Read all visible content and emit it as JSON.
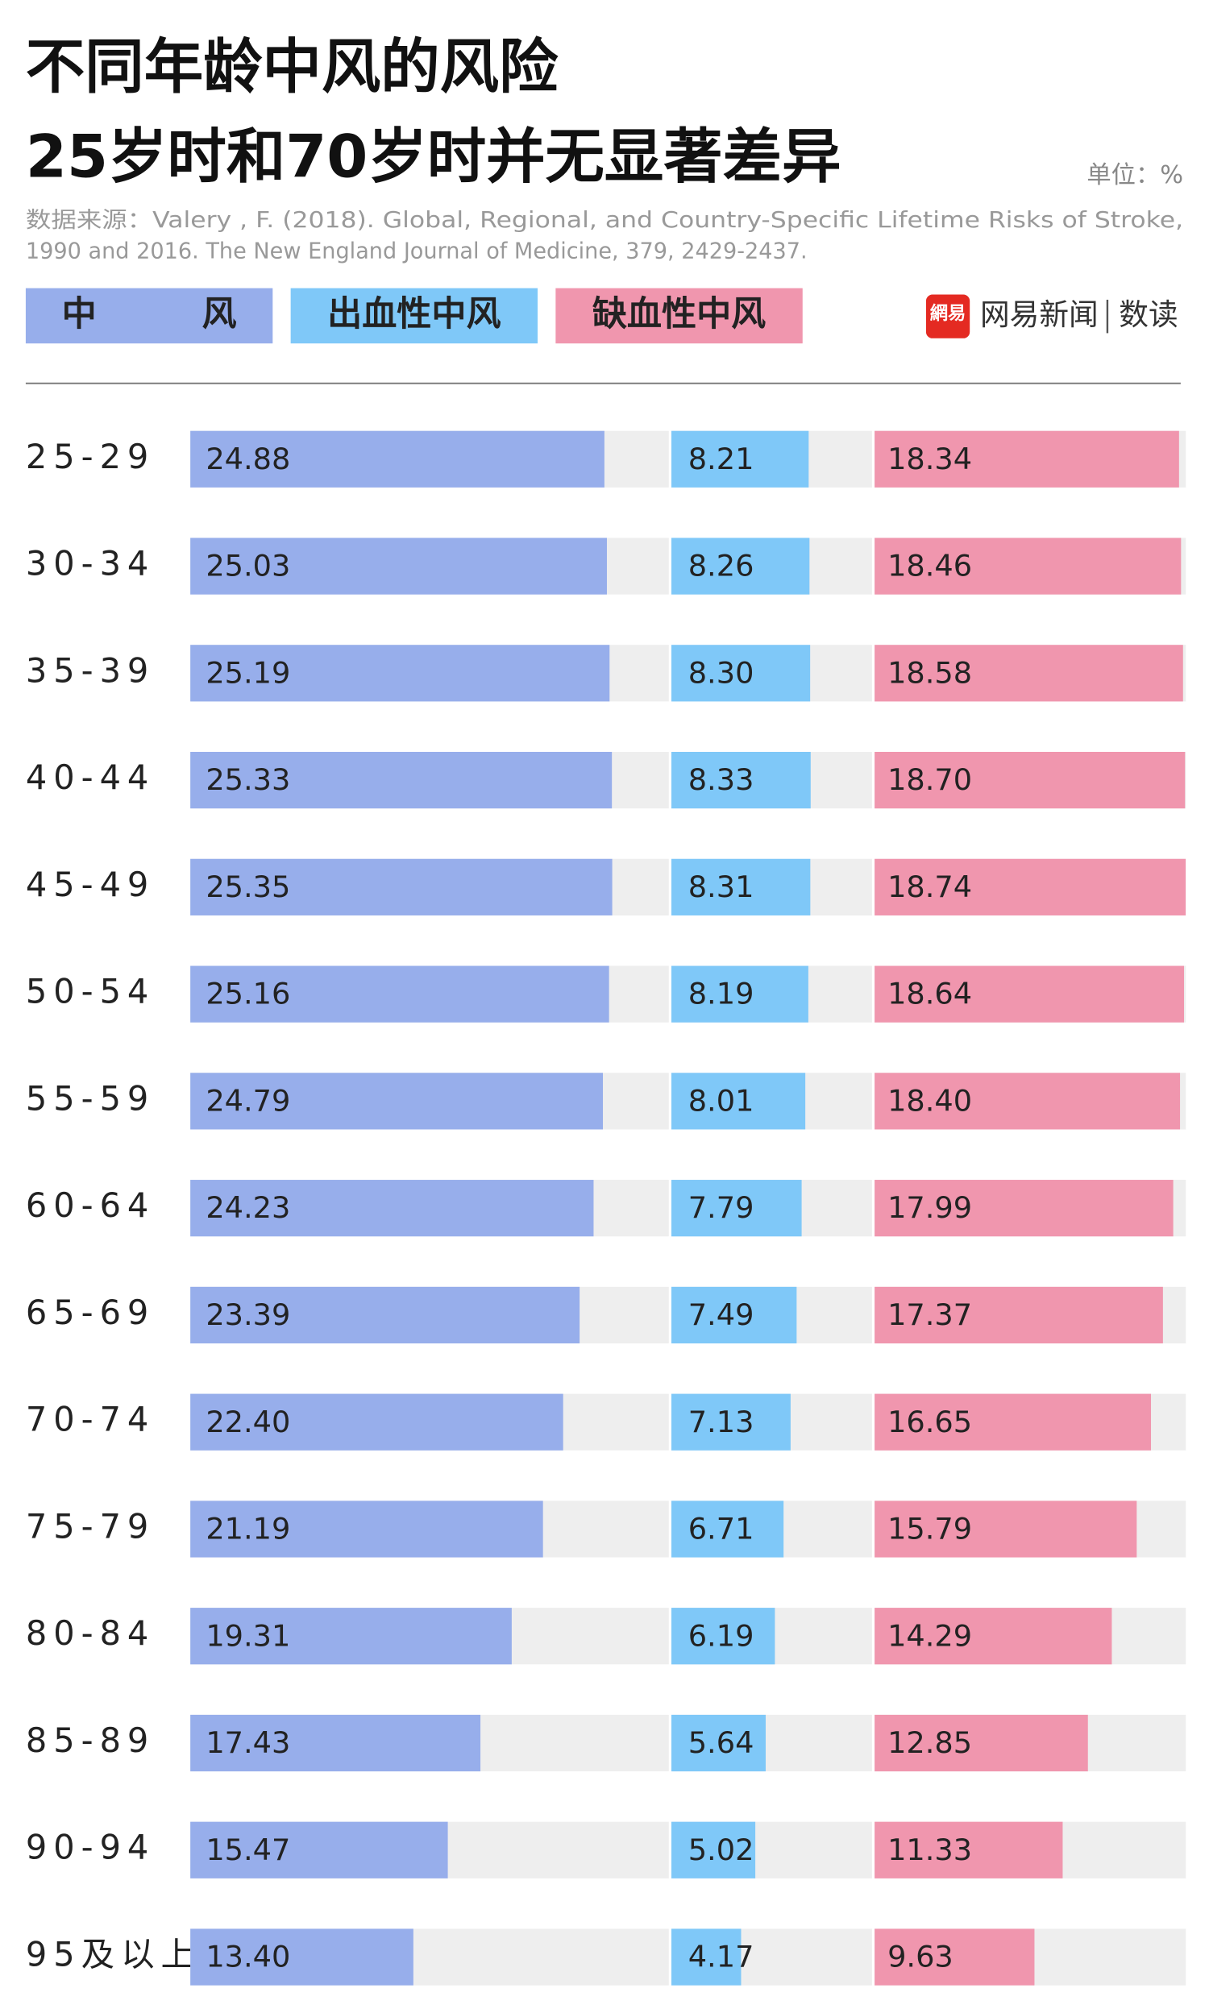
{
  "chart_data": {
    "type": "bar",
    "orientation": "horizontal",
    "title": "不同年龄中风的风险",
    "subtitle": "25岁时和70岁时并无显著差异",
    "unit_label": "单位：%",
    "source": [
      "数据来源：Valery , F. (2018). Global, Regional, and Country-Specific Lifetime Risks of Stroke,",
      "1990 and 2016. The New England Journal of Medicine, 379, 2429-2437."
    ],
    "categories": [
      "25-29",
      "30-34",
      "35-39",
      "40-44",
      "45-49",
      "50-54",
      "55-59",
      "60-64",
      "65-69",
      "70-74",
      "75-79",
      "80-84",
      "85-89",
      "90-94",
      "95及以上"
    ],
    "series": [
      {
        "name": "中风",
        "color": "#97aeeb",
        "xlim": [
          0,
          28.75
        ],
        "values": [
          24.88,
          25.03,
          25.19,
          25.33,
          25.35,
          25.16,
          24.79,
          24.23,
          23.39,
          22.4,
          21.19,
          19.31,
          17.43,
          15.47,
          13.4
        ],
        "value_labels": [
          "24.88",
          "25.03",
          "25.19",
          "25.33",
          "25.35",
          "25.16",
          "24.79",
          "24.23",
          "23.39",
          "22.40",
          "21.19",
          "19.31",
          "17.43",
          "15.47",
          "13.40"
        ]
      },
      {
        "name": "出血性中风",
        "color": "#7fc8f8",
        "xlim": [
          0,
          12
        ],
        "values": [
          8.21,
          8.26,
          8.3,
          8.33,
          8.31,
          8.19,
          8.01,
          7.79,
          7.49,
          7.13,
          6.71,
          6.19,
          5.64,
          5.02,
          4.17
        ],
        "value_labels": [
          "8.21",
          "8.26",
          "8.30",
          "8.33",
          "8.31",
          "8.19",
          "8.01",
          "7.79",
          "7.49",
          "7.13",
          "6.71",
          "6.19",
          "5.64",
          "5.02",
          "4.17"
        ]
      },
      {
        "name": "缺血性中风",
        "color": "#f096ae",
        "xlim": [
          0,
          18.75
        ],
        "values": [
          18.34,
          18.46,
          18.58,
          18.7,
          18.74,
          18.64,
          18.4,
          17.99,
          17.37,
          16.65,
          15.79,
          14.29,
          12.85,
          11.33,
          9.63
        ],
        "value_labels": [
          "18.34",
          "18.46",
          "18.58",
          "18.70",
          "18.74",
          "18.64",
          "18.40",
          "17.99",
          "17.37",
          "16.65",
          "15.79",
          "14.29",
          "12.85",
          "11.33",
          "9.63"
        ]
      }
    ],
    "track_color": "#eeeeee"
  },
  "logo": {
    "badge": "網易",
    "name": "网易新闻",
    "section": "数读"
  }
}
